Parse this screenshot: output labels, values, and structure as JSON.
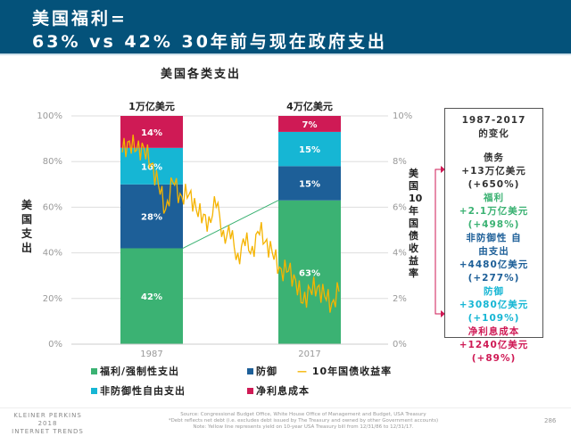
{
  "header": {
    "title_line1": "美国福利=",
    "title_line2": "63% vs 42% 30年前与现在政府支出"
  },
  "chart_data": {
    "type": "bar",
    "title": "美国各类支出",
    "ylabel": "美国支出",
    "y2label": "美国10年国债收益率",
    "categories": [
      "1987",
      "2017"
    ],
    "totals": [
      "1万亿美元",
      "4万亿美元"
    ],
    "ylim": [
      0,
      100
    ],
    "y2lim": [
      0,
      10
    ],
    "yticks": [
      "0%",
      "20%",
      "40%",
      "60%",
      "80%",
      "100%"
    ],
    "y2ticks": [
      "0%",
      "2%",
      "4%",
      "6%",
      "8%",
      "10%"
    ],
    "series": [
      {
        "name": "福利/强制性支出",
        "color": "#3bb273",
        "values": [
          42,
          63
        ]
      },
      {
        "name": "防御",
        "color": "#1d5f98",
        "values": [
          28,
          15
        ]
      },
      {
        "name": "非防御性自由支出",
        "color": "#16b6d4",
        "values": [
          16,
          15
        ]
      },
      {
        "name": "净利息成本",
        "color": "#cf1a55",
        "values": [
          14,
          7
        ]
      }
    ],
    "line": {
      "name": "10年国债收益率",
      "color": "#f5b400",
      "years": [
        1987,
        1988,
        1989,
        1990,
        1991,
        1992,
        1993,
        1994,
        1995,
        1996,
        1997,
        1998,
        1999,
        2000,
        2001,
        2002,
        2003,
        2004,
        2005,
        2006,
        2007,
        2008,
        2009,
        2010,
        2011,
        2012,
        2013,
        2014,
        2015,
        2016,
        2017
      ],
      "values": [
        8.4,
        8.9,
        8.5,
        8.6,
        7.9,
        7.0,
        5.9,
        7.1,
        6.6,
        6.4,
        6.4,
        5.3,
        5.6,
        6.0,
        5.0,
        4.6,
        4.0,
        4.3,
        4.3,
        4.8,
        4.6,
        3.7,
        3.3,
        3.2,
        2.8,
        1.8,
        2.4,
        2.5,
        2.1,
        1.8,
        2.3
      ]
    }
  },
  "legend": {
    "entries": [
      "福利/强制性支出",
      "防御",
      "10年国债收益率",
      "非防御性自由支出",
      "净利息成本"
    ],
    "colors": [
      "#3bb273",
      "#1d5f98",
      "#f5b400",
      "#16b6d4",
      "#cf1a55"
    ]
  },
  "summary": {
    "title": [
      "1987-2017",
      "的变化"
    ],
    "items": [
      {
        "label": "债务",
        "value": "+13万亿美元",
        "pct": "(+650%)",
        "color": "#333333"
      },
      {
        "label": "福利",
        "value": "+2.1万亿美元",
        "pct": "(+498%)",
        "color": "#3bb273"
      },
      {
        "label": "非防御性 自由支出",
        "value": "+4480亿美元",
        "pct": "(+277%)",
        "color": "#1d5f98"
      },
      {
        "label": "防御",
        "value": "+3080亿美元",
        "pct": "(+109%)",
        "color": "#16b6d4"
      },
      {
        "label": "净利息成本",
        "value": "+1240亿美元",
        "pct": "(+89%)",
        "color": "#cf1a55"
      }
    ]
  },
  "footer": {
    "brand": [
      "KLEINER PERKINS",
      "2018",
      "INTERNET TRENDS"
    ],
    "notes": [
      "Source: Congressional Budget Office, White House Office of Management and Budget, USA Treasury",
      "*Debt reflects net debt (i.e. excludes debt issued by The Treasury and owned by other Government accounts)",
      "Note: Yellow line represents yield on 10-year USA Treasury bill from 12/31/86 to 12/31/17."
    ],
    "page": "286"
  }
}
